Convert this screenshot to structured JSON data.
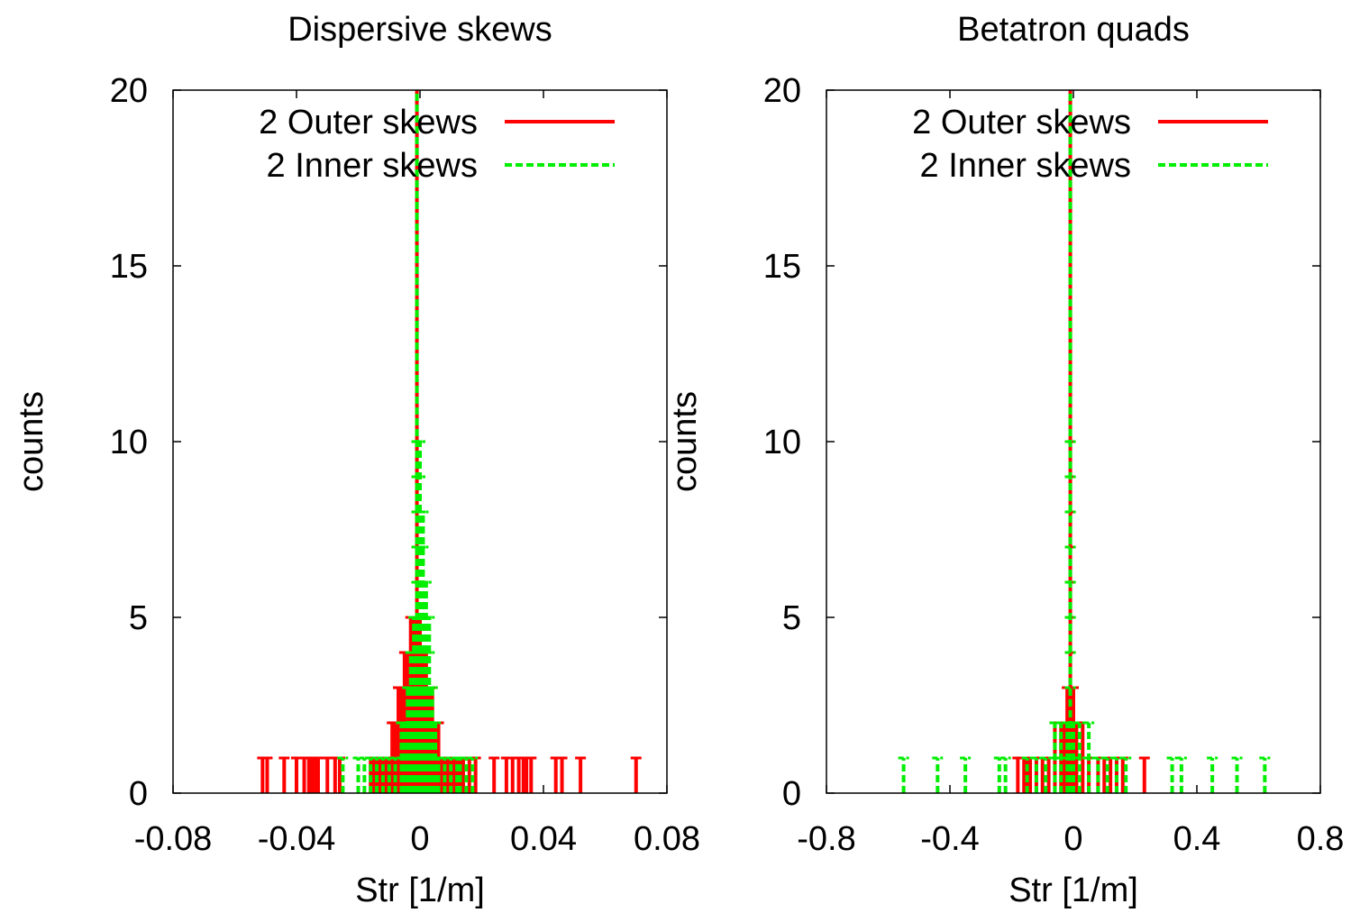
{
  "chart_data": [
    {
      "type": "histogram",
      "title": "Dispersive skews",
      "xlabel": "Str [1/m]",
      "ylabel": "counts",
      "xlim": [
        -0.08,
        0.08
      ],
      "ylim": [
        0,
        20
      ],
      "xticks": [
        "-0.08",
        "-0.04",
        "0",
        "0.04",
        "0.08"
      ],
      "xtick_values": [
        -0.08,
        -0.04,
        0,
        0.04,
        0.08
      ],
      "yticks": [
        "0",
        "5",
        "10",
        "15",
        "20"
      ],
      "ytick_values": [
        0,
        5,
        10,
        15,
        20
      ],
      "legend_placement": "top-right",
      "series": [
        {
          "name": "2 Outer skews",
          "color": "#ff0000",
          "style": "solid",
          "bins": [
            [
              -0.051,
              1
            ],
            [
              -0.0495,
              1
            ],
            [
              -0.044,
              1
            ],
            [
              -0.04,
              1
            ],
            [
              -0.0375,
              1
            ],
            [
              -0.036,
              1
            ],
            [
              -0.035,
              1
            ],
            [
              -0.034,
              1
            ],
            [
              -0.033,
              1
            ],
            [
              -0.03,
              1
            ],
            [
              -0.0275,
              1
            ],
            [
              -0.026,
              1
            ],
            [
              -0.016,
              1
            ],
            [
              -0.015,
              1
            ],
            [
              -0.014,
              1
            ],
            [
              -0.013,
              1
            ],
            [
              -0.012,
              1
            ],
            [
              -0.011,
              1
            ],
            [
              -0.01,
              1
            ],
            [
              -0.009,
              2
            ],
            [
              -0.008,
              2
            ],
            [
              -0.007,
              3
            ],
            [
              -0.006,
              3
            ],
            [
              -0.005,
              4
            ],
            [
              -0.004,
              4
            ],
            [
              -0.003,
              5
            ],
            [
              -0.002,
              5
            ],
            [
              -0.001,
              20
            ],
            [
              0.0,
              5
            ],
            [
              0.001,
              4
            ],
            [
              0.002,
              4
            ],
            [
              0.003,
              3
            ],
            [
              0.004,
              3
            ],
            [
              0.005,
              2
            ],
            [
              0.006,
              2
            ],
            [
              0.007,
              1
            ],
            [
              0.008,
              1
            ],
            [
              0.009,
              1
            ],
            [
              0.01,
              1
            ],
            [
              0.011,
              1
            ],
            [
              0.012,
              1
            ],
            [
              0.013,
              1
            ],
            [
              0.014,
              1
            ],
            [
              0.016,
              1
            ],
            [
              0.018,
              1
            ],
            [
              0.024,
              1
            ],
            [
              0.028,
              1
            ],
            [
              0.03,
              1
            ],
            [
              0.032,
              1
            ],
            [
              0.0335,
              1
            ],
            [
              0.0345,
              1
            ],
            [
              0.036,
              1
            ],
            [
              0.044,
              1
            ],
            [
              0.046,
              1
            ],
            [
              0.052,
              1
            ],
            [
              0.07,
              1
            ]
          ]
        },
        {
          "name": "2 Inner skews",
          "color": "#00ee00",
          "style": "dashed",
          "bins": [
            [
              -0.025,
              1
            ],
            [
              -0.02,
              1
            ],
            [
              -0.018,
              1
            ],
            [
              -0.016,
              1
            ],
            [
              -0.014,
              1
            ],
            [
              -0.012,
              1
            ],
            [
              -0.01,
              1
            ],
            [
              -0.008,
              1
            ],
            [
              -0.006,
              2
            ],
            [
              -0.005,
              2
            ],
            [
              -0.004,
              3
            ],
            [
              -0.003,
              4
            ],
            [
              -0.002,
              5
            ],
            [
              -0.001,
              20
            ],
            [
              0.0,
              10
            ],
            [
              0.001,
              8
            ],
            [
              0.002,
              6
            ],
            [
              0.003,
              5
            ],
            [
              0.004,
              3
            ],
            [
              0.005,
              2
            ],
            [
              0.006,
              1
            ],
            [
              0.008,
              1
            ],
            [
              0.01,
              1
            ],
            [
              0.012,
              1
            ],
            [
              0.013,
              1
            ],
            [
              0.015,
              1
            ],
            [
              0.017,
              1
            ]
          ]
        }
      ]
    },
    {
      "type": "histogram",
      "title": "Betatron quads",
      "xlabel": "Str [1/m]",
      "ylabel": "counts",
      "xlim": [
        -0.8,
        0.8
      ],
      "ylim": [
        0,
        20
      ],
      "xticks": [
        "-0.8",
        "-0.4",
        "0",
        "0.4",
        "0.8"
      ],
      "xtick_values": [
        -0.8,
        -0.4,
        0,
        0.4,
        0.8
      ],
      "yticks": [
        "0",
        "5",
        "10",
        "15",
        "20"
      ],
      "ytick_values": [
        0,
        5,
        10,
        15,
        20
      ],
      "legend_placement": "top-right",
      "series": [
        {
          "name": "2 Outer skews",
          "color": "#ff0000",
          "style": "solid",
          "bins": [
            [
              -0.18,
              1
            ],
            [
              -0.16,
              1
            ],
            [
              -0.15,
              1
            ],
            [
              -0.14,
              1
            ],
            [
              -0.12,
              1
            ],
            [
              -0.1,
              1
            ],
            [
              -0.08,
              1
            ],
            [
              -0.06,
              2
            ],
            [
              -0.04,
              2
            ],
            [
              -0.03,
              2
            ],
            [
              -0.02,
              3
            ],
            [
              -0.01,
              20
            ],
            [
              0.0,
              3
            ],
            [
              0.01,
              2
            ],
            [
              0.03,
              2
            ],
            [
              0.05,
              1
            ],
            [
              0.08,
              1
            ],
            [
              0.1,
              1
            ],
            [
              0.12,
              1
            ],
            [
              0.14,
              1
            ],
            [
              0.16,
              1
            ],
            [
              0.23,
              1
            ]
          ]
        },
        {
          "name": "2 Inner skews",
          "color": "#00ee00",
          "style": "dashed",
          "bins": [
            [
              -0.55,
              1
            ],
            [
              -0.44,
              1
            ],
            [
              -0.35,
              1
            ],
            [
              -0.24,
              1
            ],
            [
              -0.22,
              1
            ],
            [
              -0.15,
              1
            ],
            [
              -0.12,
              1
            ],
            [
              -0.09,
              1
            ],
            [
              -0.06,
              2
            ],
            [
              -0.04,
              2
            ],
            [
              -0.02,
              2
            ],
            [
              -0.01,
              20
            ],
            [
              0.0,
              2
            ],
            [
              0.02,
              2
            ],
            [
              0.05,
              2
            ],
            [
              0.08,
              1
            ],
            [
              0.11,
              1
            ],
            [
              0.14,
              1
            ],
            [
              0.17,
              1
            ],
            [
              0.32,
              1
            ],
            [
              0.35,
              1
            ],
            [
              0.45,
              1
            ],
            [
              0.53,
              1
            ],
            [
              0.62,
              1
            ]
          ]
        }
      ]
    }
  ]
}
